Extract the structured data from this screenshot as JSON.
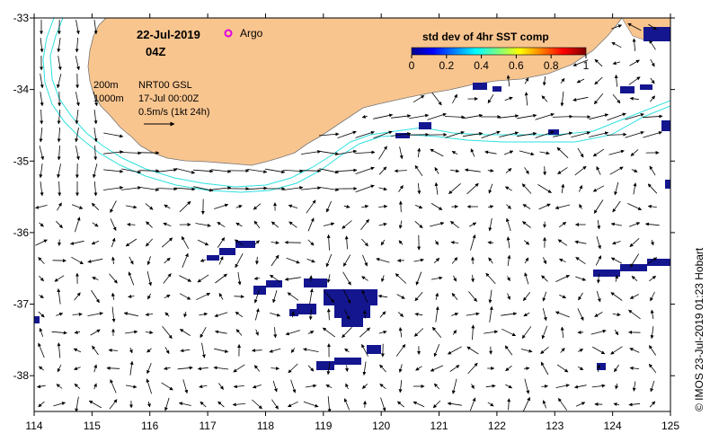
{
  "map": {
    "region": "south-western Australia ocean",
    "lon_range": [
      114,
      125
    ],
    "lat_range": [
      -38.5,
      -33
    ],
    "lon_ticks": [
      "114",
      "115",
      "116",
      "117",
      "118",
      "119",
      "120",
      "121",
      "122",
      "123",
      "124",
      "125"
    ],
    "lat_ticks": [
      "-33",
      "-34",
      "-35",
      "-36",
      "-37",
      "-38"
    ],
    "colors": {
      "land": "#f9c58f",
      "ocean": "#ffffff",
      "coastline": "#888888",
      "isobath": "#2fe0e0",
      "vector": "#000000",
      "sst_patch": "#14168f",
      "argo_marker": "#e000e0"
    }
  },
  "header": {
    "date": "22-Jul-2019",
    "time": "04Z",
    "argo_label": "Argo"
  },
  "annotations": {
    "isobath_200": "200m",
    "isobath_1000": "1000m",
    "source": "NRT00 GSL",
    "source_date": "17-Jul 00:00Z",
    "scale": "0.5m/s (1kt 24h)"
  },
  "colorbar": {
    "title": "std dev of 4hr SST comp",
    "ticks": [
      "0",
      "0.2",
      "0.4",
      "0.6",
      "0.8",
      "1"
    ],
    "colormap": "jet"
  },
  "credit": "© IMOS 23-Jul-2019 01:23 Hobart"
}
